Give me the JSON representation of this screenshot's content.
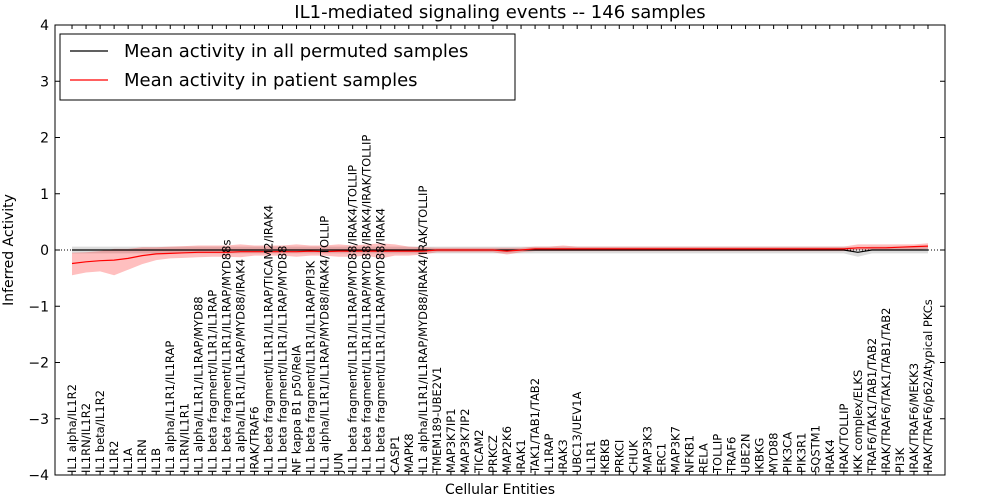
{
  "chart_data": {
    "type": "line",
    "title": "IL1-mediated signaling events -- 146 samples",
    "xlabel": "Cellular Entities",
    "ylabel": "Inferred Activity",
    "ylim": [
      -4,
      4
    ],
    "yticks": [
      -4,
      -3,
      -2,
      -1,
      0,
      1,
      2,
      3,
      4
    ],
    "ytick_labels": [
      "−4",
      "−3",
      "−2",
      "−1",
      "0",
      "1",
      "2",
      "3",
      "4"
    ],
    "legend": {
      "location": "top-left",
      "entries": [
        {
          "label": "Mean activity in all permuted samples",
          "color": "#000000"
        },
        {
          "label": "Mean activity in patient samples",
          "color": "#ff0000"
        }
      ]
    },
    "categories": [
      "IL1 alpha/IL1R2",
      "IL1RN/IL1R2",
      "IL1 beta/IL1R2",
      "IL1R2",
      "IL1A",
      "IL1RN",
      "IL1B",
      "IL1 alpha/IL1R1/IL1RAP",
      "IL1RN/IL1R1",
      "IL1 alpha/IL1R1/IL1RAP/MYD88",
      "IL1 beta fragment/IL1R1/IL1RAP",
      "IL1 beta fragment/IL1R1/IL1RAP/MYD88s",
      "IL1 alpha/IL1R1/IL1RAP/MYD88/IRAK4",
      "IRAK/TRAF6",
      "IL1 beta fragment/IL1R1/IL1RAP/TICAM2/IRAK4",
      "IL1 beta fragment/IL1R1/IL1RAP/MYD88",
      "NF kappa B1 p50/RelA",
      "IL1 beta fragment/IL1R1/IL1RAP/PI3K",
      "IL1 alpha/IL1R1/IL1RAP/MYD88/IRAK4/TOLLIP",
      "JUN",
      "IL1 beta fragment/IL1R1/IL1RAP/MYD88/IRAK4/TOLLIP",
      "IL1 beta fragment/IL1R1/IL1RAP/MYD88/IRAK4/IRAK/TOLLIP",
      "IL1 beta fragment/IL1R1/IL1RAP/MYD88/IRAK4",
      "CASP1",
      "MAPK8",
      "IL1 alpha/IL1R1/IL1RAP/MYD88/IRAK4/IRAK/TOLLIP",
      "TMEM189-UBE2V1",
      "MAP3K7IP1",
      "MAP3K7IP2",
      "TICAM2",
      "PRKCZ",
      "MAP2K6",
      "IRAK1",
      "TAK1/TAB1/TAB2",
      "IL1RAP",
      "IRAK3",
      "UBC13/UEV1A",
      "IL1R1",
      "IKBKB",
      "PRKCI",
      "CHUK",
      "MAP3K3",
      "ERC1",
      "MAP3K7",
      "NFKB1",
      "RELA",
      "TOLLIP",
      "TRAF6",
      "UBE2N",
      "IKBKG",
      "MYD88",
      "PIK3CA",
      "PIK3R1",
      "SQSTM1",
      "IRAK4",
      "IRAK/TOLLIP",
      "IKK complex/ELKS",
      "TRAF6/TAK1/TAB1/TAB2",
      "IRAK/TRAF6/TAK1/TAB1/TAB2",
      "PI3K",
      "IRAK/TRAF6/MEKK3",
      "IRAK/TRAF6/p62/Atypical PKCs"
    ],
    "series": [
      {
        "name": "Mean activity in all permuted samples",
        "color": "#000000",
        "values": [
          0.0,
          0.0,
          0.0,
          0.0,
          0.0,
          0.0,
          0.0,
          0.0,
          0.0,
          0.0,
          0.0,
          0.0,
          0.0,
          0.0,
          0.0,
          0.0,
          0.0,
          0.0,
          0.0,
          0.0,
          0.0,
          0.0,
          0.0,
          0.0,
          0.0,
          0.0,
          0.0,
          0.0,
          0.0,
          0.0,
          0.0,
          0.0,
          0.0,
          0.0,
          0.0,
          0.0,
          0.0,
          0.0,
          0.0,
          0.0,
          0.0,
          0.0,
          0.0,
          0.0,
          0.0,
          0.0,
          0.0,
          0.0,
          0.0,
          0.0,
          0.0,
          0.0,
          0.0,
          0.0,
          0.0,
          0.0,
          -0.04,
          0.0,
          0.0,
          0.0,
          0.0,
          0.0
        ],
        "band_low": [
          -0.06,
          -0.06,
          -0.06,
          -0.06,
          -0.06,
          -0.06,
          -0.06,
          -0.06,
          -0.06,
          -0.06,
          -0.06,
          -0.06,
          -0.06,
          -0.06,
          -0.06,
          -0.06,
          -0.06,
          -0.06,
          -0.06,
          -0.06,
          -0.06,
          -0.06,
          -0.06,
          -0.06,
          -0.06,
          -0.06,
          -0.06,
          -0.06,
          -0.06,
          -0.06,
          -0.06,
          -0.06,
          -0.06,
          -0.06,
          -0.06,
          -0.06,
          -0.06,
          -0.06,
          -0.06,
          -0.06,
          -0.06,
          -0.06,
          -0.06,
          -0.06,
          -0.06,
          -0.06,
          -0.06,
          -0.06,
          -0.06,
          -0.06,
          -0.06,
          -0.06,
          -0.06,
          -0.06,
          -0.06,
          -0.06,
          -0.12,
          -0.06,
          -0.06,
          -0.06,
          -0.06,
          -0.06
        ],
        "band_high": [
          0.06,
          0.06,
          0.06,
          0.06,
          0.06,
          0.06,
          0.06,
          0.06,
          0.06,
          0.06,
          0.06,
          0.06,
          0.06,
          0.06,
          0.06,
          0.06,
          0.06,
          0.06,
          0.06,
          0.06,
          0.06,
          0.06,
          0.06,
          0.06,
          0.06,
          0.06,
          0.06,
          0.06,
          0.06,
          0.06,
          0.06,
          0.06,
          0.06,
          0.06,
          0.06,
          0.06,
          0.06,
          0.06,
          0.06,
          0.06,
          0.06,
          0.06,
          0.06,
          0.06,
          0.06,
          0.06,
          0.06,
          0.06,
          0.06,
          0.06,
          0.06,
          0.06,
          0.06,
          0.06,
          0.06,
          0.06,
          0.04,
          0.06,
          0.06,
          0.06,
          0.06,
          0.06
        ]
      },
      {
        "name": "Mean activity in patient samples",
        "color": "#ff0000",
        "values": [
          -0.24,
          -0.21,
          -0.19,
          -0.18,
          -0.15,
          -0.1,
          -0.07,
          -0.06,
          -0.05,
          -0.04,
          -0.04,
          -0.04,
          -0.03,
          -0.03,
          -0.03,
          -0.03,
          -0.03,
          -0.02,
          -0.03,
          -0.02,
          -0.02,
          -0.02,
          -0.02,
          -0.02,
          -0.02,
          -0.02,
          0.0,
          0.0,
          0.0,
          0.0,
          0.0,
          -0.02,
          0.0,
          0.02,
          0.02,
          0.02,
          0.02,
          0.02,
          0.02,
          0.02,
          0.02,
          0.02,
          0.02,
          0.02,
          0.02,
          0.02,
          0.02,
          0.02,
          0.02,
          0.02,
          0.02,
          0.02,
          0.02,
          0.02,
          0.02,
          0.02,
          0.04,
          0.04,
          0.04,
          0.05,
          0.06,
          0.07
        ],
        "band_low": [
          -0.45,
          -0.4,
          -0.38,
          -0.45,
          -0.35,
          -0.25,
          -0.18,
          -0.15,
          -0.14,
          -0.13,
          -0.12,
          -0.12,
          -0.13,
          -0.1,
          -0.1,
          -0.1,
          -0.12,
          -0.1,
          -0.1,
          -0.12,
          -0.12,
          -0.1,
          -0.15,
          -0.1,
          -0.1,
          -0.08,
          -0.04,
          -0.04,
          -0.04,
          -0.04,
          -0.04,
          -0.08,
          -0.04,
          -0.02,
          -0.02,
          -0.02,
          -0.02,
          -0.02,
          -0.02,
          -0.02,
          -0.02,
          -0.02,
          -0.02,
          -0.02,
          -0.02,
          -0.02,
          -0.02,
          -0.02,
          -0.02,
          -0.02,
          -0.02,
          -0.02,
          -0.02,
          -0.02,
          -0.02,
          -0.02,
          0.0,
          0.0,
          0.0,
          0.0,
          0.0,
          0.02
        ],
        "band_high": [
          -0.05,
          -0.04,
          -0.02,
          0.02,
          0.02,
          0.05,
          0.05,
          0.06,
          0.07,
          0.08,
          0.08,
          0.08,
          0.1,
          0.08,
          0.08,
          0.08,
          0.1,
          0.08,
          0.08,
          0.1,
          0.08,
          0.1,
          0.12,
          0.1,
          0.06,
          0.05,
          0.04,
          0.04,
          0.04,
          0.04,
          0.04,
          0.04,
          0.04,
          0.06,
          0.06,
          0.08,
          0.06,
          0.06,
          0.06,
          0.06,
          0.06,
          0.06,
          0.06,
          0.06,
          0.06,
          0.06,
          0.06,
          0.06,
          0.06,
          0.06,
          0.06,
          0.06,
          0.06,
          0.06,
          0.06,
          0.06,
          0.1,
          0.1,
          0.1,
          0.1,
          0.1,
          0.12
        ]
      }
    ]
  }
}
